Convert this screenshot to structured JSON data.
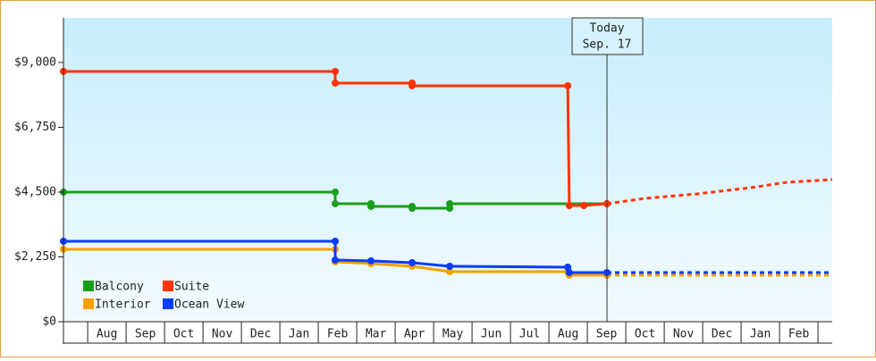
{
  "chart_data": {
    "type": "line",
    "xlim": [
      -0.63,
      19.37
    ],
    "xticks": [
      {
        "value": 0.5,
        "label": "Aug"
      },
      {
        "value": 1.5,
        "label": "Sep"
      },
      {
        "value": 2.5,
        "label": "Oct"
      },
      {
        "value": 3.5,
        "label": "Nov"
      },
      {
        "value": 4.5,
        "label": "Dec"
      },
      {
        "value": 5.5,
        "label": "Jan"
      },
      {
        "value": 6.5,
        "label": "Feb"
      },
      {
        "value": 7.5,
        "label": "Mar"
      },
      {
        "value": 8.5,
        "label": "Apr"
      },
      {
        "value": 9.5,
        "label": "May"
      },
      {
        "value": 10.5,
        "label": "Jun"
      },
      {
        "value": 11.5,
        "label": "Jul"
      },
      {
        "value": 12.5,
        "label": "Aug"
      },
      {
        "value": 13.5,
        "label": "Sep"
      },
      {
        "value": 14.5,
        "label": "Oct"
      },
      {
        "value": 15.5,
        "label": "Nov"
      },
      {
        "value": 16.5,
        "label": "Dec"
      },
      {
        "value": 17.5,
        "label": "Jan"
      },
      {
        "value": 18.5,
        "label": "Feb"
      }
    ],
    "ylim": [
      0,
      10550
    ],
    "yticks": [
      {
        "value": 0,
        "label": "$0"
      },
      {
        "value": 2250,
        "label": "$2,250"
      },
      {
        "value": 4500,
        "label": "$4,500"
      },
      {
        "value": 6750,
        "label": "$6,750"
      },
      {
        "value": 9000,
        "label": "$9,000"
      }
    ],
    "today": {
      "x": 13.51,
      "label": "Today",
      "date": "Sep. 17"
    },
    "legend": "lower left",
    "series": [
      {
        "name": "Balcony",
        "color": "#1a9e1a",
        "x": [
          -0.63,
          6.44,
          6.44,
          7.37,
          7.37,
          8.44,
          8.44,
          9.42,
          9.42,
          13.51
        ],
        "values": [
          4500,
          4500,
          4097,
          4097,
          4003,
          4003,
          3941,
          3941,
          4097,
          4097
        ]
      },
      {
        "name": "Suite",
        "color": "#ff3300",
        "x": [
          -0.63,
          6.44,
          6.44,
          8.44,
          8.44,
          12.49,
          12.53,
          12.91,
          13.51
        ],
        "values": [
          8690,
          8690,
          8286,
          8286,
          8193,
          8193,
          4034,
          4034,
          4097
        ],
        "forecast": {
          "x": [
            13.51,
            14.51,
            15.86,
            17.26,
            18.19,
            19.37
          ],
          "values": [
            4097,
            4283,
            4438,
            4655,
            4841,
            4934
          ]
        }
      },
      {
        "name": "Interior",
        "color": "#f5a000",
        "x": [
          -0.63,
          6.44,
          6.44,
          7.37,
          8.44,
          9.42,
          12.49,
          12.53,
          13.51
        ],
        "values": [
          2514,
          2514,
          2079,
          2017,
          1924,
          1738,
          1738,
          1614,
          1614
        ],
        "forecast": {
          "x": [
            13.51,
            19.37
          ],
          "values": [
            1614,
            1614
          ]
        }
      },
      {
        "name": "Ocean View",
        "color": "#0a3cff",
        "x": [
          -0.63,
          6.44,
          6.44,
          7.37,
          8.44,
          9.42,
          12.49,
          12.53,
          13.51
        ],
        "values": [
          2793,
          2793,
          2141,
          2110,
          2048,
          1924,
          1893,
          1707,
          1707
        ],
        "forecast": {
          "x": [
            13.51,
            19.37
          ],
          "values": [
            1707,
            1707
          ]
        }
      }
    ]
  }
}
